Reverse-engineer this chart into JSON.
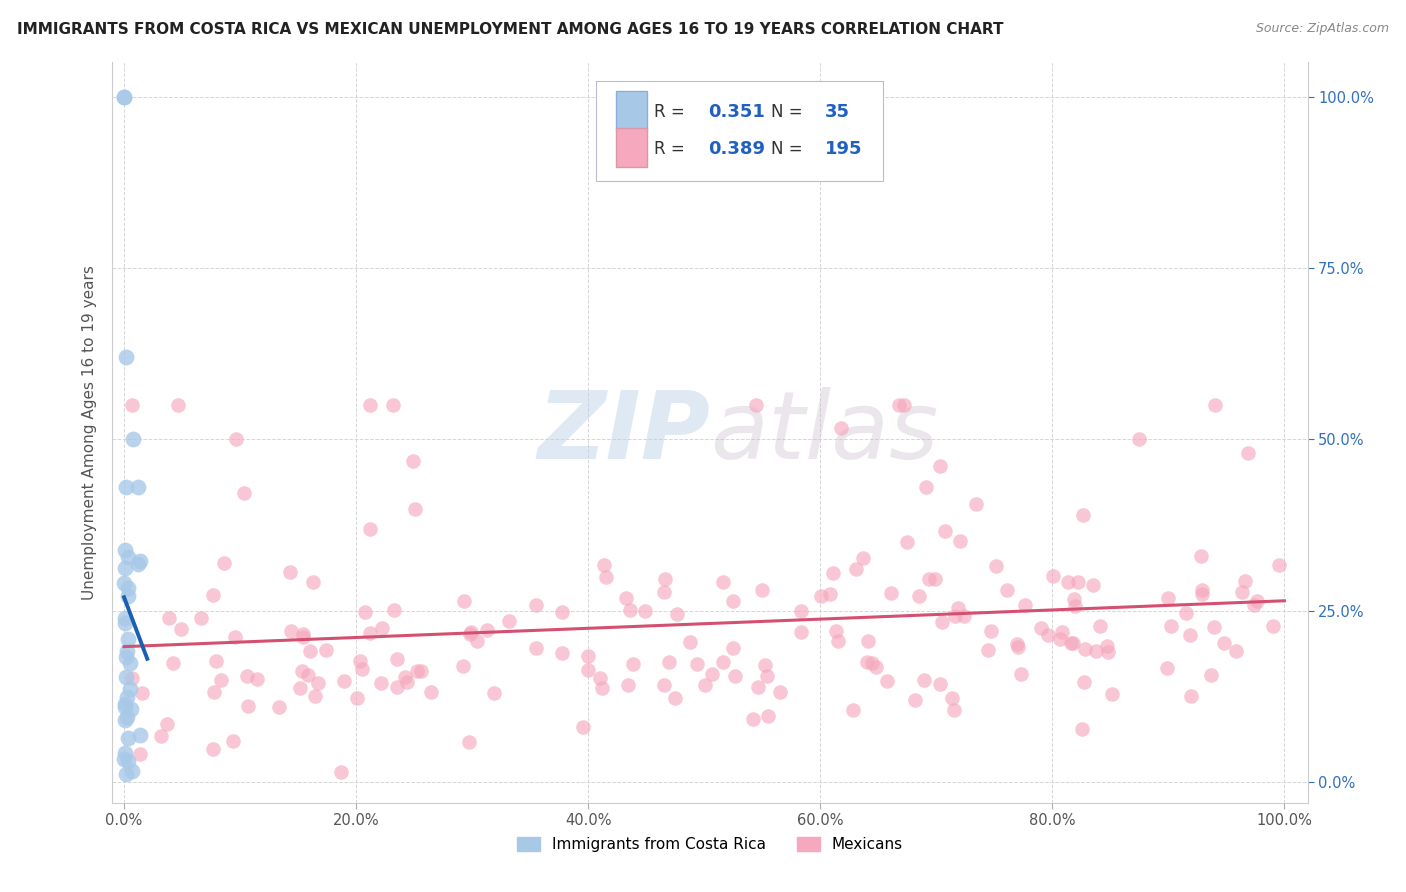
{
  "title": "IMMIGRANTS FROM COSTA RICA VS MEXICAN UNEMPLOYMENT AMONG AGES 16 TO 19 YEARS CORRELATION CHART",
  "source": "Source: ZipAtlas.com",
  "ylabel": "Unemployment Among Ages 16 to 19 years",
  "legend_r_blue": "0.351",
  "legend_n_blue": "35",
  "legend_r_pink": "0.389",
  "legend_n_pink": "195",
  "blue_color": "#a8c8e8",
  "pink_color": "#f5a8be",
  "blue_line_color": "#1a5fb4",
  "pink_line_color": "#d45070",
  "watermark_zip": "ZIP",
  "watermark_atlas": "atlas",
  "title_color": "#222222",
  "axis_label_color": "#555555",
  "background_color": "#ffffff",
  "grid_color": "#cccccc",
  "right_tick_color": "#3070c0",
  "blue_seed": 42,
  "pink_seed": 99
}
